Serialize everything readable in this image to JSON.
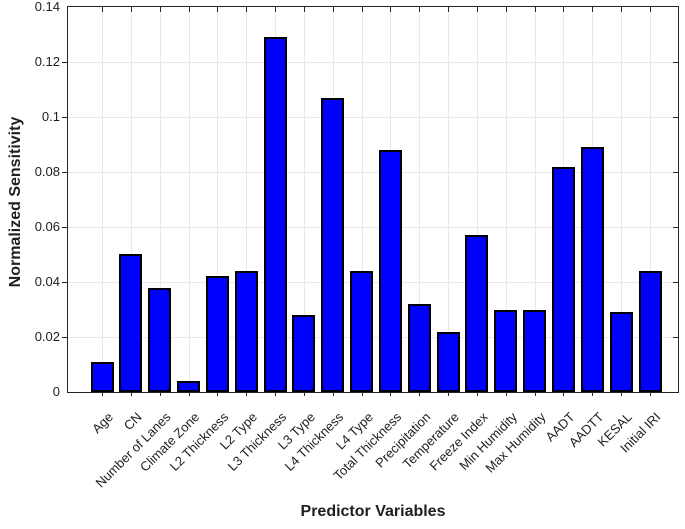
{
  "chart_data": {
    "type": "bar",
    "xlabel": "Predictor Variables",
    "ylabel": "Normalized Sensitivity",
    "categories": [
      "Age",
      "CN",
      "Number of Lanes",
      "Climate Zone",
      "L2 Thickness",
      "L2 Type",
      "L3 Thickness",
      "L3 Type",
      "L4 Thickness",
      "L4 Type",
      "Total Thickness",
      "Precipitation",
      "Temperature",
      "Freeze Index",
      "Min Humidity",
      "Max Humidity",
      "AADT",
      "AADTT",
      "KESAL",
      "Initial IRI"
    ],
    "values": [
      0.011,
      0.05,
      0.038,
      0.004,
      0.042,
      0.044,
      0.129,
      0.028,
      0.107,
      0.044,
      0.088,
      0.032,
      0.022,
      0.057,
      0.03,
      0.03,
      0.082,
      0.089,
      0.029,
      0.044
    ],
    "ylim": [
      0,
      0.14
    ],
    "yticks": [
      0,
      0.02,
      0.04,
      0.06,
      0.08,
      0.1,
      0.12,
      0.14
    ],
    "ytick_labels": [
      "0",
      "0.02",
      "0.04",
      "0.06",
      "0.08",
      "0.1",
      "0.12",
      "0.14"
    ],
    "grid": true,
    "legend_position": "none",
    "colors": {
      "bar_fill": "#0000FF",
      "bar_edge": "#000000",
      "grid_line": "#E8E8E8",
      "axis_line": "#262626",
      "text": "#1F1F1F",
      "background": "#FFFFFF"
    }
  }
}
